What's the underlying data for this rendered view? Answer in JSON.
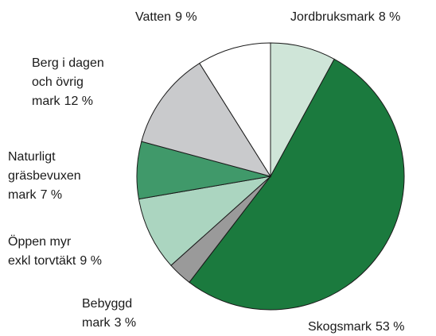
{
  "chart_data": {
    "type": "pie",
    "categories": [
      [
        "Jordbruksmark"
      ],
      [
        "Skogsmark"
      ],
      [
        "Bebyggd",
        "mark"
      ],
      [
        "Öppen myr",
        "exkl torvtäkt"
      ],
      [
        "Naturligt",
        "gräsbevuxen",
        "mark"
      ],
      [
        "Berg i dagen",
        "och övrig",
        "mark"
      ],
      [
        "Vatten"
      ]
    ],
    "values": [
      8,
      53,
      3,
      9,
      7,
      12,
      9
    ],
    "value_labels": [
      "8 %",
      "53 %",
      "3 %",
      "9 %",
      "7 %",
      "12 %",
      "9 %"
    ],
    "colors": [
      "#cfe5d8",
      "#1b7a3e",
      "#9a9a9a",
      "#abd5c0",
      "#40996a",
      "#c9cacc",
      "#ffffff"
    ]
  }
}
